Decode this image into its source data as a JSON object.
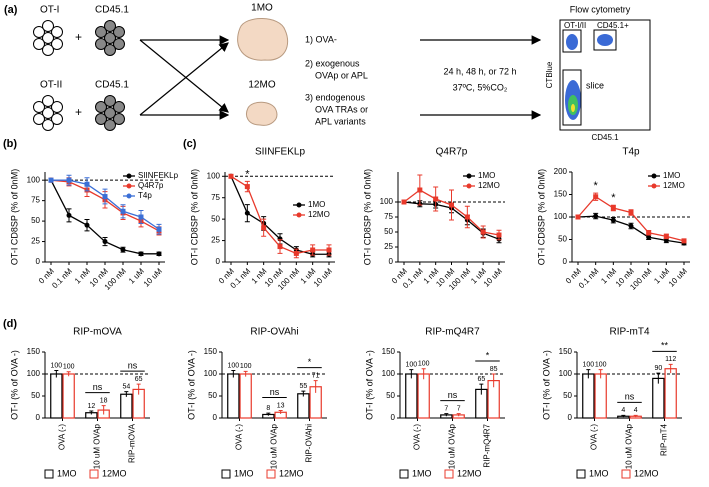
{
  "schematic": {
    "panel_label": "(a)",
    "cells": [
      "OT-I",
      "CD45.1",
      "OT-II",
      "CD45.1"
    ],
    "groups": [
      "1MO",
      "12MO"
    ],
    "steps": [
      [
        "1) OVA-"
      ],
      [
        "2) exogenous",
        "OVAp or APL"
      ],
      [
        "3) endogenous",
        "OVA TRAs or",
        "APL variants"
      ]
    ],
    "conditions": [
      "24 h, 48 h, or 72 h",
      "37ºC, 5%CO₂"
    ],
    "flow": {
      "title": "Flow cytometry",
      "gates": [
        "OT-I/II",
        "CD45.1+",
        "slice"
      ],
      "ylabel": "CTBlue",
      "xlabel": "CD45.1"
    }
  },
  "chart_data": [
    {
      "type": "line",
      "panel_label": "(b)",
      "ylabel": "OT-I CD8SP (% of 0nM)",
      "categories": [
        "0 nM",
        "0.1 nM",
        "1 nM",
        "10 nM",
        "100 nM",
        "1 uM",
        "10 uM"
      ],
      "ylim": [
        0,
        110
      ],
      "yticks": [
        0,
        25,
        50,
        75,
        100
      ],
      "reference_line": 100,
      "legend": "upper right",
      "series": [
        {
          "name": "SIINFEKLp",
          "color": "#000000",
          "values": [
            100,
            57,
            45,
            25,
            15,
            10,
            10
          ],
          "errors": [
            0,
            8,
            7,
            5,
            3,
            2,
            2
          ]
        },
        {
          "name": "Q4R7p",
          "color": "#e8392b",
          "values": [
            100,
            98,
            88,
            76,
            60,
            50,
            38
          ],
          "errors": [
            0,
            5,
            8,
            10,
            8,
            7,
            5
          ]
        },
        {
          "name": "T4p",
          "color": "#3b6fd6",
          "values": [
            100,
            100,
            95,
            80,
            62,
            55,
            40
          ],
          "errors": [
            0,
            6,
            8,
            9,
            8,
            8,
            6
          ]
        }
      ]
    },
    {
      "type": "line",
      "panel_label": "(c)",
      "title": "SIINFEKLp",
      "ylabel": "OT-I CD8SP (% of 0nM)",
      "categories": [
        "0 nM",
        "0.1 nM",
        "1 nM",
        "10 nM",
        "100 nM",
        "1 uM",
        "10 uM"
      ],
      "ylim": [
        0,
        105
      ],
      "yticks": [
        0,
        25,
        50,
        75,
        100
      ],
      "reference_line": 100,
      "legend": "center right",
      "series": [
        {
          "name": "1MO",
          "color": "#000000",
          "values": [
            100,
            57,
            45,
            27,
            14,
            9,
            9
          ],
          "errors": [
            0,
            10,
            8,
            6,
            4,
            3,
            3
          ]
        },
        {
          "name": "12MO",
          "color": "#e8392b",
          "values": [
            100,
            88,
            40,
            18,
            10,
            14,
            14
          ],
          "errors": [
            0,
            6,
            10,
            8,
            5,
            6,
            6
          ]
        }
      ],
      "annotations": [
        {
          "text": "*",
          "category": "0.1 nM"
        }
      ]
    },
    {
      "type": "line",
      "title": "Q4R7p",
      "ylabel": "OT-I CD8SP (% of 0nM)",
      "categories": [
        "0 nM",
        "0.1 nM",
        "1 nM",
        "10 nM",
        "100 nM",
        "1 uM",
        "10 uM"
      ],
      "ylim": [
        0,
        150
      ],
      "yticks": [
        0,
        25,
        50,
        75,
        100
      ],
      "reference_line": 100,
      "legend": "upper right",
      "series": [
        {
          "name": "1MO",
          "color": "#000000",
          "values": [
            100,
            97,
            96,
            90,
            70,
            48,
            38
          ],
          "errors": [
            0,
            5,
            6,
            8,
            8,
            7,
            6
          ]
        },
        {
          "name": "12MO",
          "color": "#e8392b",
          "values": [
            100,
            120,
            105,
            95,
            75,
            50,
            45
          ],
          "errors": [
            0,
            25,
            20,
            25,
            18,
            10,
            8
          ]
        }
      ]
    },
    {
      "type": "line",
      "title": "T4p",
      "ylabel": "OT-I CD8SP (% of 0nM)",
      "categories": [
        "0 nM",
        "0.1 nM",
        "1 nM",
        "10 nM",
        "100 nM",
        "1 uM",
        "10 uM"
      ],
      "ylim": [
        0,
        200
      ],
      "yticks": [
        0,
        50,
        100,
        150,
        200
      ],
      "reference_line": 100,
      "legend": "upper right",
      "series": [
        {
          "name": "1MO",
          "color": "#000000",
          "values": [
            100,
            102,
            93,
            80,
            55,
            48,
            42
          ],
          "errors": [
            0,
            6,
            6,
            6,
            5,
            5,
            4
          ]
        },
        {
          "name": "12MO",
          "color": "#e8392b",
          "values": [
            100,
            145,
            120,
            110,
            65,
            57,
            47
          ],
          "errors": [
            0,
            8,
            6,
            6,
            5,
            5,
            4
          ]
        }
      ],
      "annotations": [
        {
          "text": "*",
          "category": "0.1 nM"
        },
        {
          "text": "*",
          "category": "1 nM"
        }
      ]
    },
    {
      "type": "bar",
      "panel_label": "(d)",
      "title": "RIP-mOVA",
      "ylabel": "OT-I (% of OVA -)",
      "categories": [
        "OVA (-)",
        "10 uM OVAp",
        "RIP-mOVA"
      ],
      "ylim": [
        0,
        150
      ],
      "yticks": [
        0,
        50,
        100,
        150
      ],
      "reference_line": 100,
      "series": [
        {
          "name": "1MO",
          "color": "#000000",
          "values": [
            100,
            12,
            54
          ],
          "errors": [
            8,
            4,
            6
          ]
        },
        {
          "name": "12MO",
          "color": "#e8392b",
          "values": [
            100,
            18,
            65
          ],
          "errors": [
            5,
            10,
            12
          ]
        }
      ],
      "annotations": [
        {
          "text": "ns",
          "category": "10 uM OVAp"
        },
        {
          "text": "ns",
          "category": "RIP-mOVA"
        }
      ]
    },
    {
      "type": "bar",
      "title": "RIP-OVAhi",
      "ylabel": "OT-I (% of OVA -)",
      "categories": [
        "OVA (-)",
        "10 uM OVAp",
        "RIP-OVAhi"
      ],
      "ylim": [
        0,
        150
      ],
      "yticks": [
        0,
        50,
        100,
        150
      ],
      "reference_line": 100,
      "series": [
        {
          "name": "1MO",
          "color": "#000000",
          "values": [
            100,
            8,
            55
          ],
          "errors": [
            8,
            3,
            6
          ]
        },
        {
          "name": "12MO",
          "color": "#e8392b",
          "values": [
            100,
            13,
            71
          ],
          "errors": [
            6,
            4,
            14
          ]
        }
      ],
      "annotations": [
        {
          "text": "ns",
          "category": "10 uM OVAp"
        },
        {
          "text": "*",
          "category": "RIP-OVAhi"
        }
      ]
    },
    {
      "type": "bar",
      "title": "RIP-mQ4R7",
      "ylabel": "OT-I (% of OVA -)",
      "categories": [
        "OVA (-)",
        "10 uM OVAp",
        "RIP-mQ4R7"
      ],
      "ylim": [
        0,
        150
      ],
      "yticks": [
        0,
        50,
        100,
        150
      ],
      "reference_line": 100,
      "series": [
        {
          "name": "1MO",
          "color": "#000000",
          "values": [
            100,
            7,
            65
          ],
          "errors": [
            10,
            3,
            12
          ]
        },
        {
          "name": "12MO",
          "color": "#e8392b",
          "values": [
            100,
            7,
            85
          ],
          "errors": [
            12,
            3,
            15
          ]
        }
      ],
      "annotations": [
        {
          "text": "ns",
          "category": "10 uM OVAp"
        },
        {
          "text": "*",
          "category": "RIP-mQ4R7"
        }
      ]
    },
    {
      "type": "bar",
      "title": "RIP-mT4",
      "ylabel": "OT-I (% of OVA -)",
      "categories": [
        "OVA (-)",
        "10 uM OVAp",
        "RIP-mT4"
      ],
      "ylim": [
        0,
        150
      ],
      "yticks": [
        0,
        50,
        100,
        150
      ],
      "reference_line": 100,
      "series": [
        {
          "name": "1MO",
          "color": "#000000",
          "values": [
            100,
            4,
            90
          ],
          "errors": [
            10,
            2,
            12
          ]
        },
        {
          "name": "12MO",
          "color": "#e8392b",
          "values": [
            100,
            4,
            112
          ],
          "errors": [
            10,
            2,
            10
          ]
        }
      ],
      "annotations": [
        {
          "text": "ns",
          "category": "10 uM OVAp"
        },
        {
          "text": "**",
          "category": "RIP-mT4"
        }
      ]
    }
  ]
}
